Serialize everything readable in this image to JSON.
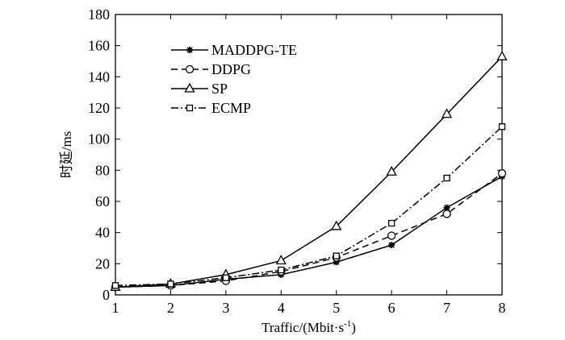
{
  "chart_data": {
    "type": "line",
    "xlabel": "Traffic/(Mbit·s",
    "xlabel_sup": "-1",
    "xlabel_close": ")",
    "ylabel": "时延/ms",
    "xlim": [
      1,
      8
    ],
    "ylim": [
      0,
      180
    ],
    "x_ticks": [
      1,
      2,
      3,
      4,
      5,
      6,
      7,
      8
    ],
    "y_ticks": [
      0,
      20,
      40,
      60,
      80,
      100,
      120,
      140,
      160,
      180
    ],
    "grid": false,
    "legend_position": "top-left",
    "x": [
      1,
      2,
      3,
      4,
      5,
      6,
      7,
      8
    ],
    "series": [
      {
        "name": "MADDPG-TE",
        "values": [
          5,
          6,
          10,
          13,
          21,
          32,
          56,
          76
        ],
        "line": "solid",
        "marker": "star"
      },
      {
        "name": "DDPG",
        "values": [
          5,
          6,
          9,
          15,
          24,
          38,
          52,
          78
        ],
        "line": "dashed",
        "marker": "circle"
      },
      {
        "name": "SP",
        "values": [
          5,
          7,
          13,
          22,
          44,
          79,
          116,
          153
        ],
        "line": "solid",
        "marker": "triangle"
      },
      {
        "name": "ECMP",
        "values": [
          6,
          7,
          11,
          16,
          25,
          46,
          75,
          108
        ],
        "line": "dashdot",
        "marker": "square"
      }
    ]
  }
}
